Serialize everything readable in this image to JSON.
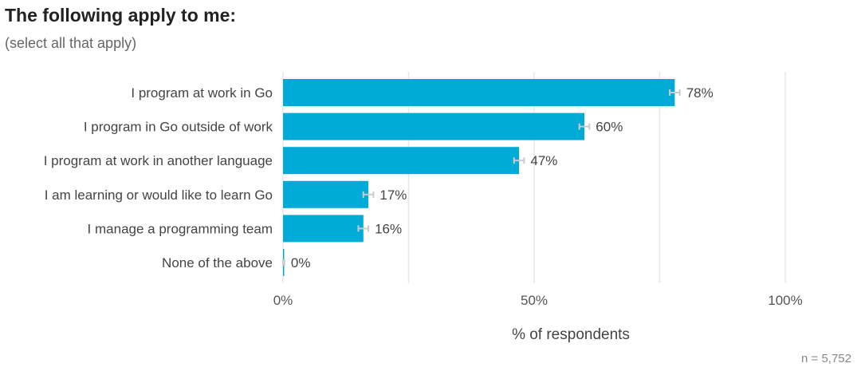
{
  "chart_data": {
    "type": "bar",
    "orientation": "horizontal",
    "title": "The following apply to me:",
    "subtitle": "(select all that apply)",
    "categories": [
      "I program at work in Go",
      "I program in Go outside of work",
      "I program at work in another language",
      "I am learning or would like to learn Go",
      "I manage a programming team",
      "None of the above"
    ],
    "values": [
      78,
      60,
      47,
      17,
      16,
      0
    ],
    "value_labels": [
      "78%",
      "60%",
      "47%",
      "17%",
      "16%",
      "0%"
    ],
    "error_margin": [
      1,
      1,
      1,
      1,
      1,
      0.3
    ],
    "xlabel": "% of respondents",
    "xlim": [
      0,
      100
    ],
    "xticks": [
      0,
      50,
      100
    ],
    "xtick_labels": [
      "0%",
      "50%",
      "100%"
    ],
    "minor_grid": [
      25,
      75
    ],
    "grid": true,
    "bar_color": "#00acd7",
    "error_bar_color": "#cccccc",
    "grid_color": "#e8e8e8",
    "note": "n =  5,752"
  }
}
